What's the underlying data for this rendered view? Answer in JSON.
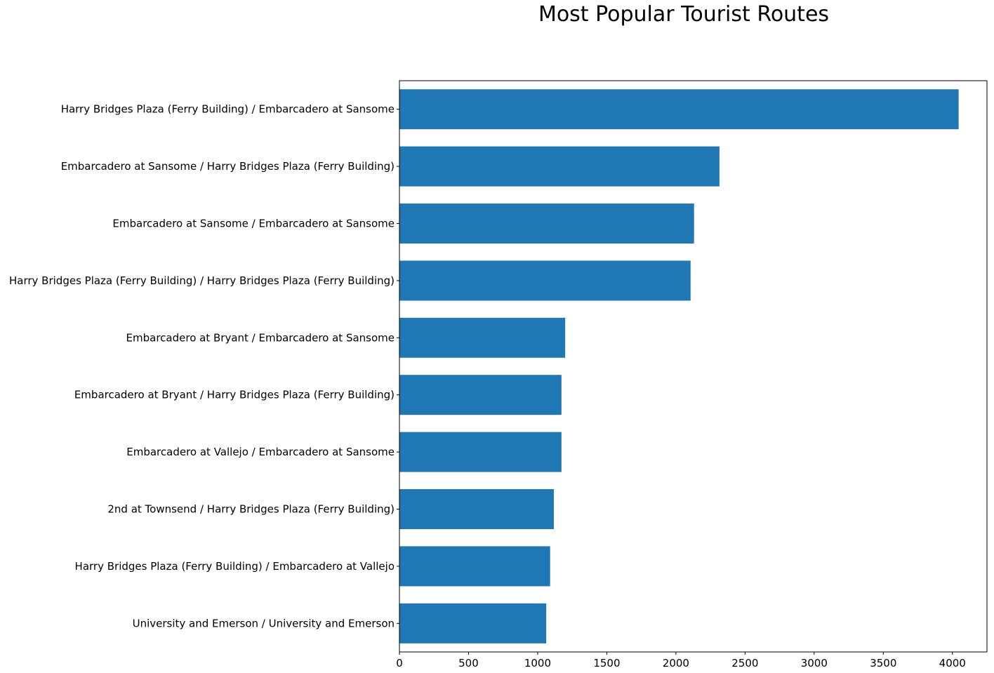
{
  "chart_data": {
    "type": "bar",
    "orientation": "horizontal",
    "title": "Most Popular Tourist Routes",
    "xlabel": "",
    "ylabel": "",
    "xlim": [
      0,
      4250
    ],
    "x_ticks": [
      0,
      500,
      1000,
      1500,
      2000,
      2500,
      3000,
      3500,
      4000
    ],
    "x_tick_labels": [
      "0",
      "500",
      "1000",
      "1500",
      "2000",
      "2500",
      "3000",
      "3500",
      "4000"
    ],
    "grid": false,
    "bar_color": "#1f77b4",
    "categories": [
      "Harry Bridges Plaza (Ferry Building) / Embarcadero at Sansome",
      "Embarcadero at Sansome / Harry Bridges Plaza (Ferry Building)",
      "Embarcadero at Sansome / Embarcadero at Sansome",
      "Harry Bridges Plaza (Ferry Building) / Harry Bridges Plaza (Ferry Building)",
      "Embarcadero at Bryant / Embarcadero at Sansome",
      "Embarcadero at Bryant / Harry Bridges Plaza (Ferry Building)",
      "Embarcadero at Vallejo / Embarcadero at Sansome",
      "2nd at Townsend / Harry Bridges Plaza (Ferry Building)",
      "Harry Bridges Plaza (Ferry Building) / Embarcadero at Vallejo",
      "University and Emerson / University and Emerson"
    ],
    "values": [
      4045,
      2315,
      2131,
      2106,
      1199,
      1172,
      1172,
      1117,
      1090,
      1062
    ]
  }
}
